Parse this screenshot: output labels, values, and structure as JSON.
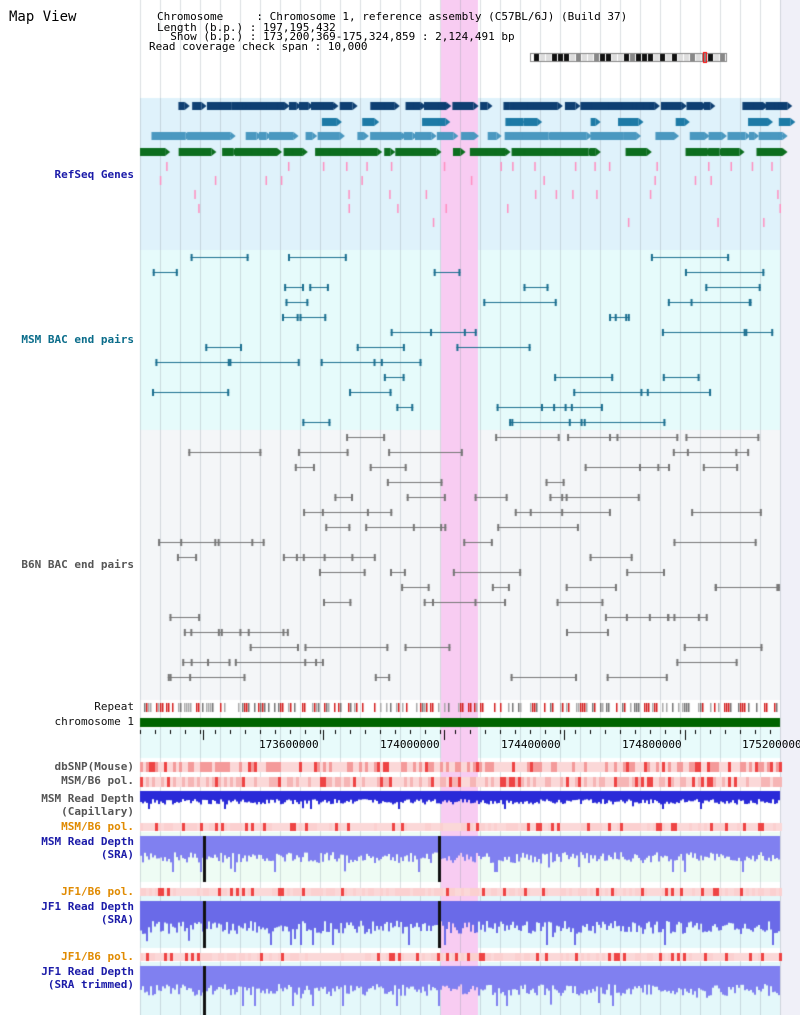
{
  "header": {
    "title": "Map View",
    "chromosome_line": "Chromosome     : Chromosome 1, reference assembly (C57BL/6J) (Build 37)",
    "length_line": "Length (b.p.) : 197,195,432",
    "show_line": "  Show (b.p.) : 173,200,369-175,324,859 : 2,124,491 bp",
    "coverage_line": "Read coverage check span : 10,000"
  },
  "tracks": {
    "refseq": "RefSeq Genes",
    "msm_bac": "MSM BAC end pairs",
    "b6n_bac": "B6N BAC end pairs",
    "repeat": "Repeat",
    "chromosome": "chromosome 1",
    "dbsnp": "dbSNP(Mouse)",
    "msm_b6_pol_cap": "MSM/B6 pol.",
    "msm_read_depth_cap_1": "MSM Read Depth",
    "msm_read_depth_cap_2": "(Capillary)",
    "msm_b6_pol_sra": "MSM/B6 pol.",
    "msm_read_depth_sra_1": "MSM Read Depth",
    "msm_read_depth_sra_2": "(SRA)",
    "jf1_b6_pol_sra": "JF1/B6 pol.",
    "jf1_read_depth_sra_1": "JF1 Read Depth",
    "jf1_read_depth_sra_2": "(SRA)",
    "jf1_b6_pol_trim": "JF1/B6 pol.",
    "jf1_read_depth_trim_1": "JF1 Read Depth",
    "jf1_read_depth_trim_2": "(SRA trimmed)"
  },
  "axis": {
    "ticks": [
      "173600000",
      "174000000",
      "174400000",
      "174800000",
      "175200000"
    ]
  },
  "colors": {
    "refseq_bg": "#dff2fb",
    "msm_bac_bg": "#e6fbfb",
    "b6n_bac_bg": "#f4f6f8",
    "highlight": "#f8ccf2",
    "chromosome": "#006400",
    "depth_blue": "#2a2ad8",
    "depth_light": "#8080f0"
  }
}
